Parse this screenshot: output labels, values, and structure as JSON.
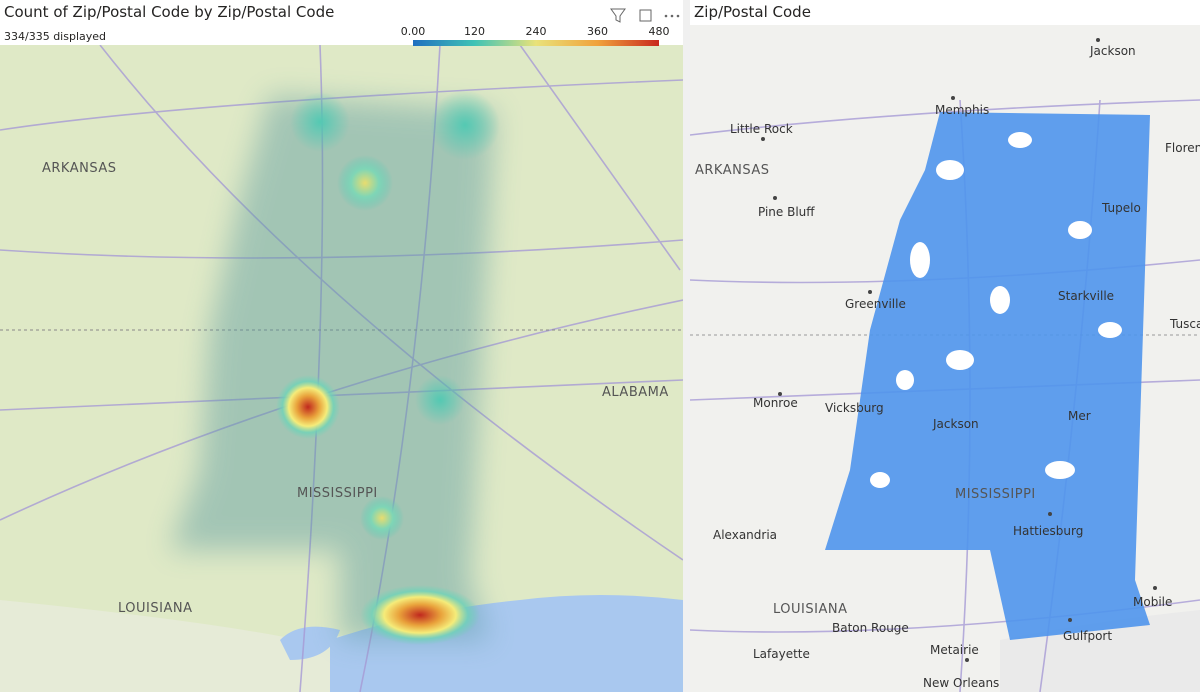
{
  "left_visual": {
    "title": "Count of Zip/Postal Code by Zip/Postal Code",
    "subtitle": "334/335 displayed",
    "legend_ticks": [
      "0.00",
      "120",
      "240",
      "360",
      "480"
    ],
    "map_labels": [
      "ARKANSAS",
      "MISSISSIPPI",
      "LOUISIANA",
      "ALABAMA"
    ]
  },
  "right_visual": {
    "title": "Zip/Postal Code",
    "map_labels": [
      "Jackson",
      "Memphis",
      "Little Rock",
      "Floren",
      "ARKANSAS",
      "Pine Bluff",
      "Tupelo",
      "Greenville",
      "Starkville",
      "Tusca",
      "Monroe",
      "Vicksburg",
      "Jackson",
      "Mer",
      "MISSISSIPPI",
      "Alexandria",
      "Hattiesburg",
      "LOUISIANA",
      "Baton Rouge",
      "Mobile",
      "Gulfport",
      "Lafayette",
      "Metairie",
      "New Orleans"
    ]
  }
}
